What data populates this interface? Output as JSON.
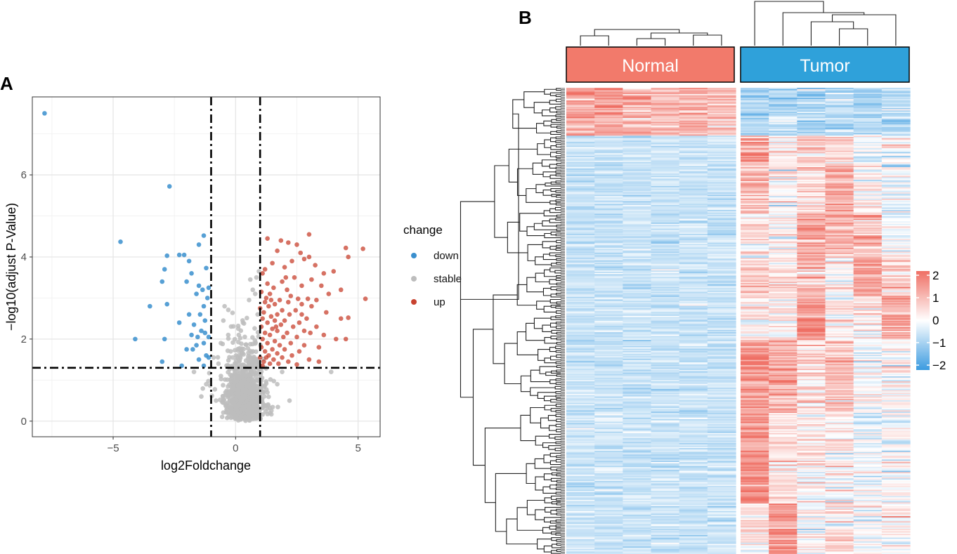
{
  "panel_labels": {
    "a": "A",
    "b": "B"
  },
  "colors": {
    "down": "#3a8fce",
    "stable": "#bdbdbd",
    "up": "#c8422f",
    "normal_bar": "#f27a6b",
    "tumor_bar": "#2fa1da",
    "heat_high": "#ef6f64",
    "heat_mid": "#ffffff",
    "heat_low": "#3b9be0"
  },
  "chart_data": [
    {
      "type": "scatter",
      "panel": "A",
      "title": "",
      "xlabel": "log2Foldchange",
      "ylabel": "−log10(adjust P-Value)",
      "xlim": [
        -8.3,
        5.9
      ],
      "ylim": [
        -0.38,
        7.9
      ],
      "xticks": [
        -5,
        0,
        5
      ],
      "xtick_labels": [
        "−5",
        "0",
        "5"
      ],
      "yticks": [
        0,
        2,
        4,
        6
      ],
      "ytick_labels": [
        "0",
        "2",
        "4",
        "6"
      ],
      "grid": true,
      "thresholds": {
        "x": [
          -1,
          1
        ],
        "y": 1.3
      },
      "legend": {
        "title": "change",
        "entries": [
          "down",
          "stable",
          "up"
        ],
        "position": "right"
      },
      "series": [
        {
          "name": "down",
          "points": [
            [
              -7.8,
              7.5
            ],
            [
              -2.7,
              5.72
            ],
            [
              -4.7,
              4.37
            ],
            [
              -1.3,
              4.52
            ],
            [
              -1.5,
              4.3
            ],
            [
              -2.1,
              4.05
            ],
            [
              -2.3,
              4.05
            ],
            [
              -2.8,
              4.03
            ],
            [
              -1.9,
              3.9
            ],
            [
              -1.2,
              3.73
            ],
            [
              -2.9,
              3.7
            ],
            [
              -1.8,
              3.6
            ],
            [
              -3.0,
              3.4
            ],
            [
              -2.0,
              3.4
            ],
            [
              -1.5,
              3.3
            ],
            [
              -1.1,
              3.25
            ],
            [
              -1.35,
              3.2
            ],
            [
              -1.6,
              3.1
            ],
            [
              -1.15,
              3.0
            ],
            [
              -3.5,
              2.8
            ],
            [
              -2.8,
              2.85
            ],
            [
              -1.3,
              2.8
            ],
            [
              -1.45,
              2.6
            ],
            [
              -1.9,
              2.6
            ],
            [
              -1.25,
              2.45
            ],
            [
              -2.3,
              2.4
            ],
            [
              -1.7,
              2.35
            ],
            [
              -1.4,
              2.2
            ],
            [
              -1.25,
              2.15
            ],
            [
              -1.1,
              2.05
            ],
            [
              -1.55,
              2.05
            ],
            [
              -1.8,
              2.1
            ],
            [
              -4.1,
              2.0
            ],
            [
              -2.9,
              2.0
            ],
            [
              -1.3,
              1.9
            ],
            [
              -1.6,
              1.85
            ],
            [
              -2.0,
              1.75
            ],
            [
              -1.75,
              1.75
            ],
            [
              -1.2,
              1.6
            ],
            [
              -1.5,
              1.5
            ],
            [
              -1.1,
              1.55
            ],
            [
              -3.0,
              1.45
            ],
            [
              -2.2,
              1.35
            ],
            [
              -1.3,
              1.35
            ]
          ]
        },
        {
          "name": "up",
          "points": [
            [
              3.0,
              4.55
            ],
            [
              1.3,
              4.45
            ],
            [
              1.85,
              4.4
            ],
            [
              2.15,
              4.35
            ],
            [
              2.5,
              4.3
            ],
            [
              4.5,
              4.22
            ],
            [
              5.2,
              4.2
            ],
            [
              1.7,
              4.15
            ],
            [
              2.65,
              4.1
            ],
            [
              3.0,
              4.0
            ],
            [
              4.6,
              4.0
            ],
            [
              2.8,
              3.95
            ],
            [
              2.3,
              3.9
            ],
            [
              1.5,
              3.85
            ],
            [
              3.25,
              3.8
            ],
            [
              2.0,
              3.75
            ],
            [
              1.2,
              3.7
            ],
            [
              4.0,
              3.65
            ],
            [
              3.6,
              3.6
            ],
            [
              1.1,
              3.6
            ],
            [
              2.4,
              3.5
            ],
            [
              3.1,
              3.45
            ],
            [
              1.9,
              3.4
            ],
            [
              1.3,
              3.35
            ],
            [
              2.7,
              3.3
            ],
            [
              3.5,
              3.3
            ],
            [
              1.55,
              3.25
            ],
            [
              4.3,
              3.2
            ],
            [
              2.1,
              3.2
            ],
            [
              1.05,
              3.15
            ],
            [
              3.8,
              3.1
            ],
            [
              1.4,
              3.1
            ],
            [
              2.25,
              3.05
            ],
            [
              5.3,
              2.98
            ],
            [
              2.55,
              2.98
            ],
            [
              2.95,
              2.98
            ],
            [
              3.3,
              2.95
            ],
            [
              1.8,
              2.95
            ],
            [
              2.15,
              2.9
            ],
            [
              1.2,
              2.9
            ],
            [
              1.6,
              2.85
            ],
            [
              2.7,
              2.85
            ],
            [
              3.1,
              2.8
            ],
            [
              1.35,
              2.8
            ],
            [
              1.0,
              2.75
            ],
            [
              2.45,
              2.7
            ],
            [
              1.9,
              2.7
            ],
            [
              1.15,
              2.65
            ],
            [
              3.7,
              2.65
            ],
            [
              2.2,
              2.6
            ],
            [
              1.7,
              2.6
            ],
            [
              1.45,
              2.55
            ],
            [
              4.6,
              2.52
            ],
            [
              4.3,
              2.5
            ],
            [
              2.9,
              2.5
            ],
            [
              1.1,
              2.5
            ],
            [
              1.6,
              2.45
            ],
            [
              2.0,
              2.45
            ],
            [
              2.6,
              2.4
            ],
            [
              1.3,
              2.4
            ],
            [
              1.85,
              2.35
            ],
            [
              2.35,
              2.3
            ],
            [
              1.05,
              2.3
            ],
            [
              3.3,
              2.3
            ],
            [
              1.5,
              2.25
            ],
            [
              2.8,
              2.2
            ],
            [
              1.7,
              2.2
            ],
            [
              1.2,
              2.15
            ],
            [
              2.1,
              2.15
            ],
            [
              3.05,
              2.15
            ],
            [
              1.4,
              2.1
            ],
            [
              1.95,
              2.05
            ],
            [
              2.5,
              2.05
            ],
            [
              1.1,
              2.0
            ],
            [
              4.1,
              2.0
            ],
            [
              4.5,
              2.0
            ],
            [
              1.6,
              1.95
            ],
            [
              2.25,
              1.9
            ],
            [
              1.3,
              1.9
            ],
            [
              2.8,
              1.85
            ],
            [
              1.8,
              1.85
            ],
            [
              1.05,
              1.8
            ],
            [
              3.4,
              1.8
            ],
            [
              1.5,
              1.75
            ],
            [
              2.0,
              1.75
            ],
            [
              1.2,
              1.7
            ],
            [
              2.6,
              1.7
            ],
            [
              1.7,
              1.65
            ],
            [
              1.35,
              1.6
            ],
            [
              2.3,
              1.6
            ],
            [
              1.0,
              1.55
            ],
            [
              1.9,
              1.55
            ],
            [
              3.0,
              1.5
            ],
            [
              1.55,
              1.5
            ],
            [
              1.15,
              1.45
            ],
            [
              2.15,
              1.45
            ],
            [
              3.4,
              1.45
            ],
            [
              1.4,
              1.4
            ],
            [
              1.75,
              1.4
            ],
            [
              2.5,
              1.38
            ],
            [
              1.1,
              1.35
            ],
            [
              1.25,
              1.55
            ],
            [
              1.65,
              2.3
            ],
            [
              2.7,
              2.6
            ],
            [
              3.6,
              2.1
            ],
            [
              1.45,
              2.95
            ],
            [
              2.05,
              3.5
            ],
            [
              1.25,
              3.0
            ]
          ]
        },
        {
          "name": "stable",
          "center": [
            0.35,
            0.35
          ],
          "count": 950,
          "note": "dense cloud of non-significant genes, mostly |log2FC| < 1.5, -log10(adj.P) < 3.7",
          "extra_points": [
            [
              3.9,
              1.2
            ],
            [
              1.9,
              1.2
            ],
            [
              -1.7,
              1.2
            ],
            [
              0.85,
              3.5
            ],
            [
              0.7,
              3.2
            ],
            [
              -0.45,
              2.8
            ],
            [
              -0.3,
              2.1
            ],
            [
              0.9,
              2.6
            ],
            [
              -0.9,
              1.55
            ],
            [
              -0.6,
              1.9
            ],
            [
              -0.2,
              1.7
            ],
            [
              0.3,
              2.4
            ],
            [
              0.55,
              2.95
            ],
            [
              0.8,
              3.1
            ],
            [
              0.6,
              3.45
            ],
            [
              0.95,
              3.65
            ],
            [
              -0.8,
              0.5
            ],
            [
              -1.2,
              0.9
            ],
            [
              -1.4,
              0.6
            ],
            [
              -0.6,
              1.1
            ],
            [
              1.3,
              0.7
            ],
            [
              1.7,
              0.9
            ],
            [
              2.2,
              0.5
            ],
            [
              1.0,
              1.0
            ],
            [
              -0.5,
              2.45
            ],
            [
              -0.7,
              1.4
            ]
          ]
        }
      ]
    },
    {
      "type": "heatmap",
      "panel": "B",
      "groups": [
        {
          "name": "Normal",
          "n_samples": 6
        },
        {
          "name": "Tumor",
          "n_samples": 6
        }
      ],
      "n_rows": 370,
      "row_clusters": [
        {
          "rows": 38,
          "normal_mean": 1.1,
          "tumor_mean": -0.8
        },
        {
          "rows": 332,
          "normal_mean": -0.5,
          "tumor_mean": 0.8
        }
      ],
      "color_scale": {
        "min": -2,
        "max": 2
      },
      "legend": {
        "ticks": [
          2,
          1,
          0,
          -1,
          -2
        ],
        "tick_labels": [
          "2",
          "1",
          "0",
          "−1",
          "−2"
        ]
      },
      "dendrograms": {
        "columns": true,
        "rows": true
      }
    }
  ]
}
